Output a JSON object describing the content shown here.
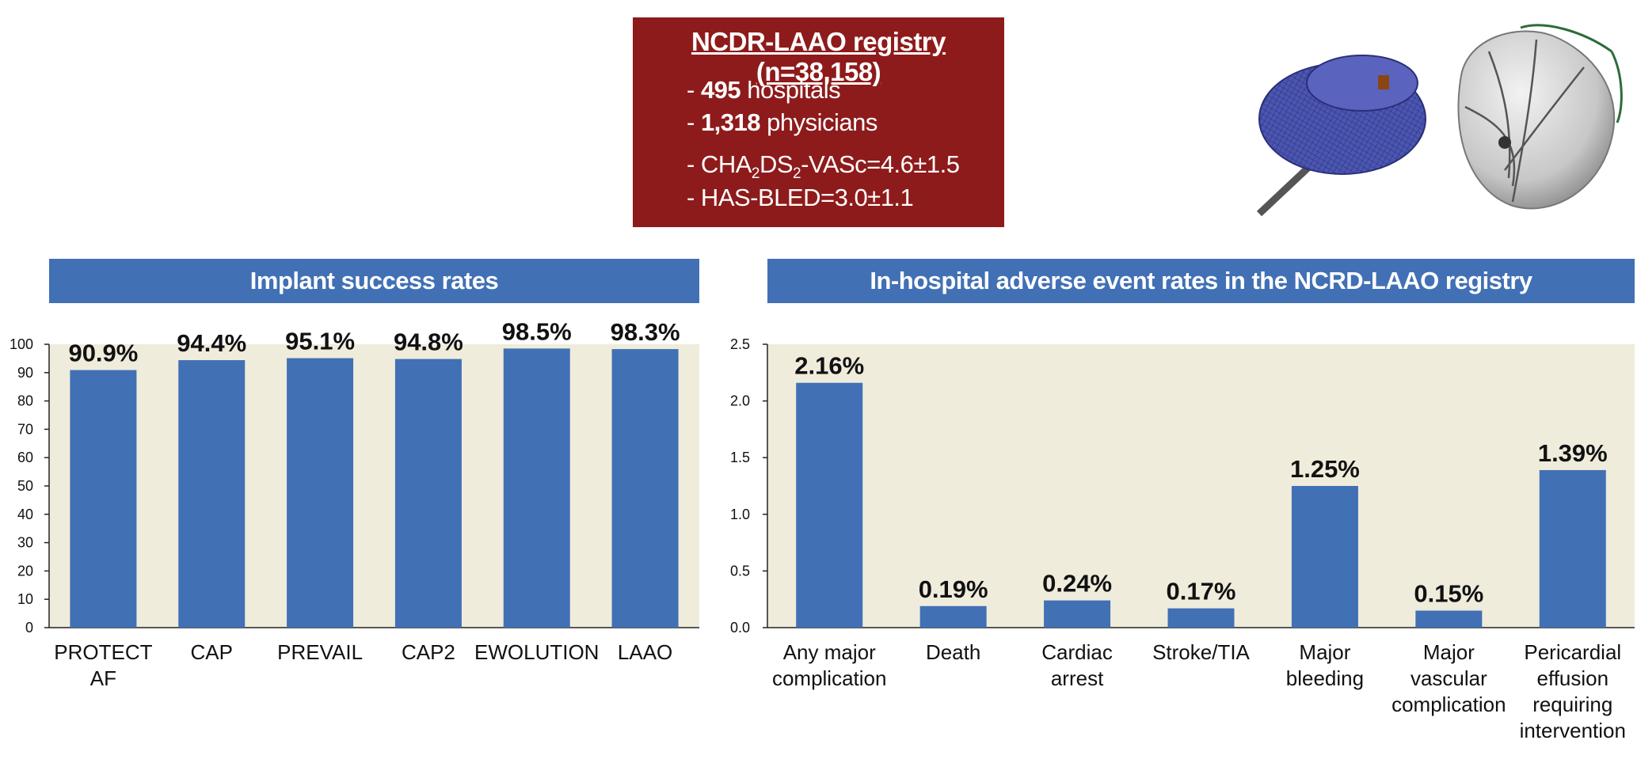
{
  "registry": {
    "title": "NCDR-LAAO registry (n=38,158)",
    "hospitals_num": "495",
    "hospitals_label": " hospitals",
    "physicians_num": "1,318",
    "physicians_label": " physicians",
    "chads_value": "-VASc=4.6±1.5",
    "hasbled": "- HAS-BLED=3.0±1.1"
  },
  "colors": {
    "bar": "#4170b5",
    "plot_bg": "#efecdc",
    "box": "#8e1b1b",
    "header": "#4170b5"
  },
  "chart_data": [
    {
      "type": "bar",
      "title": "Implant success rates",
      "categories": [
        [
          "PROTECT",
          "AF"
        ],
        [
          "CAP"
        ],
        [
          "PREVAIL"
        ],
        [
          "CAP2"
        ],
        [
          "EWOLUTION"
        ],
        [
          "LAAO"
        ]
      ],
      "values": [
        90.9,
        94.4,
        95.1,
        94.8,
        98.5,
        98.3
      ],
      "value_labels": [
        "90.9%",
        "94.4%",
        "95.1%",
        "94.8%",
        "98.5%",
        "98.3%"
      ],
      "ylim": [
        0,
        100
      ],
      "yticks": [
        "0",
        "10",
        "20",
        "30",
        "40",
        "50",
        "60",
        "70",
        "80",
        "90",
        "100"
      ],
      "ytick_values": [
        0,
        10,
        20,
        30,
        40,
        50,
        60,
        70,
        80,
        90,
        100
      ],
      "xlabel": "",
      "ylabel": ""
    },
    {
      "type": "bar",
      "title": "In-hospital adverse event rates in the NCRD-LAAO registry",
      "categories": [
        [
          "Any major",
          "complication"
        ],
        [
          "Death"
        ],
        [
          "Cardiac",
          "arrest"
        ],
        [
          "Stroke/TIA"
        ],
        [
          "Major",
          "bleeding"
        ],
        [
          "Major",
          "vascular",
          "complication"
        ],
        [
          "Pericardial",
          "effusion",
          "requiring",
          "intervention"
        ]
      ],
      "values": [
        2.16,
        0.19,
        0.24,
        0.17,
        1.25,
        0.15,
        1.39
      ],
      "value_labels": [
        "2.16%",
        "0.19%",
        "0.24%",
        "0.17%",
        "1.25%",
        "0.15%",
        "1.39%"
      ],
      "ylim": [
        0,
        2.5
      ],
      "yticks": [
        "0.0",
        "0.5",
        "1.0",
        "1.5",
        "2.0",
        "2.5"
      ],
      "ytick_values": [
        0,
        0.5,
        1.0,
        1.5,
        2.0,
        2.5
      ],
      "xlabel": "",
      "ylabel": ""
    }
  ]
}
